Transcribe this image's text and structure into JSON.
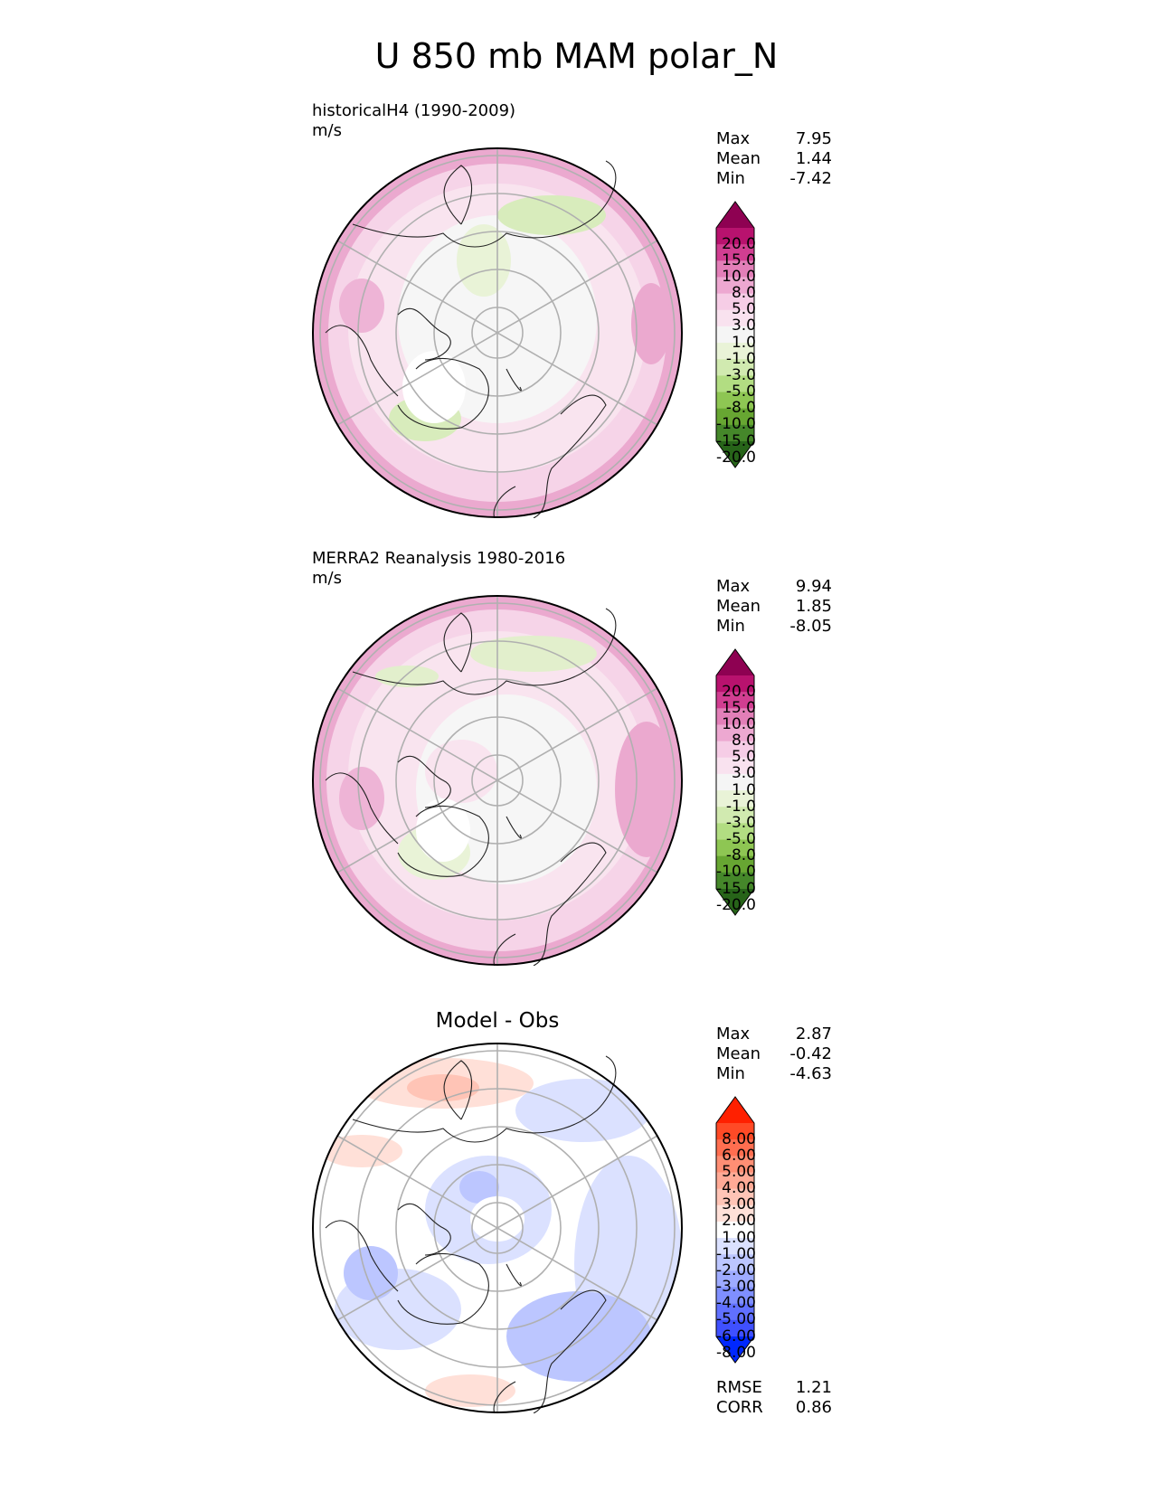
{
  "figure": {
    "title": "U 850 mb MAM polar_N"
  },
  "panels": [
    {
      "label": "historicalH4 (1990-2009)",
      "units": "m/s",
      "stats": [
        {
          "name": "Max",
          "value": "7.95"
        },
        {
          "name": "Mean",
          "value": "1.44"
        },
        {
          "name": "Min",
          "value": "-7.42"
        }
      ],
      "colorbar": {
        "ticks": [
          "20.0",
          "15.0",
          "10.0",
          "8.0",
          "5.0",
          "3.0",
          "1.0",
          "-1.0",
          "-3.0",
          "-5.0",
          "-8.0",
          "-10.0",
          "-15.0",
          "-20.0"
        ],
        "colors": [
          "#8e0152",
          "#b8126e",
          "#d13e91",
          "#e27fb8",
          "#eda8d1",
          "#f6cde6",
          "#f9e2ef",
          "#f5f5f5",
          "#e9f3d7",
          "#d1eab0",
          "#b2dd82",
          "#8ec653",
          "#67a632",
          "#45872a",
          "#276419"
        ]
      }
    },
    {
      "label": "MERRA2 Reanalysis 1980-2016",
      "units": "m/s",
      "stats": [
        {
          "name": "Max",
          "value": "9.94"
        },
        {
          "name": "Mean",
          "value": "1.85"
        },
        {
          "name": "Min",
          "value": "-8.05"
        }
      ],
      "colorbar": {
        "ticks": [
          "20.0",
          "15.0",
          "10.0",
          "8.0",
          "5.0",
          "3.0",
          "1.0",
          "-1.0",
          "-3.0",
          "-5.0",
          "-8.0",
          "-10.0",
          "-15.0",
          "-20.0"
        ],
        "colors": [
          "#8e0152",
          "#b8126e",
          "#d13e91",
          "#e27fb8",
          "#eda8d1",
          "#f6cde6",
          "#f9e2ef",
          "#f5f5f5",
          "#e9f3d7",
          "#d1eab0",
          "#b2dd82",
          "#8ec653",
          "#67a632",
          "#45872a",
          "#276419"
        ]
      }
    },
    {
      "label": "Model - Obs",
      "stats": [
        {
          "name": "Max",
          "value": "2.87"
        },
        {
          "name": "Mean",
          "value": "-0.42"
        },
        {
          "name": "Min",
          "value": "-4.63"
        }
      ],
      "colorbar": {
        "ticks": [
          "8.00",
          "6.00",
          "5.00",
          "4.00",
          "3.00",
          "2.00",
          "1.00",
          "-1.00",
          "-2.00",
          "-3.00",
          "-4.00",
          "-5.00",
          "-6.00",
          "-8.00"
        ],
        "colors": [
          "#ff2000",
          "#ff4a26",
          "#ff6e50",
          "#ff8e74",
          "#ffaa96",
          "#ffc4b6",
          "#ffe0d8",
          "#ffffff",
          "#dbe1ff",
          "#bcc6ff",
          "#9eabff",
          "#7f8fff",
          "#6070ff",
          "#3f50ff",
          "#0028ff"
        ]
      },
      "metrics": [
        {
          "name": "RMSE",
          "value": "1.21"
        },
        {
          "name": "CORR",
          "value": "0.86"
        }
      ]
    }
  ]
}
